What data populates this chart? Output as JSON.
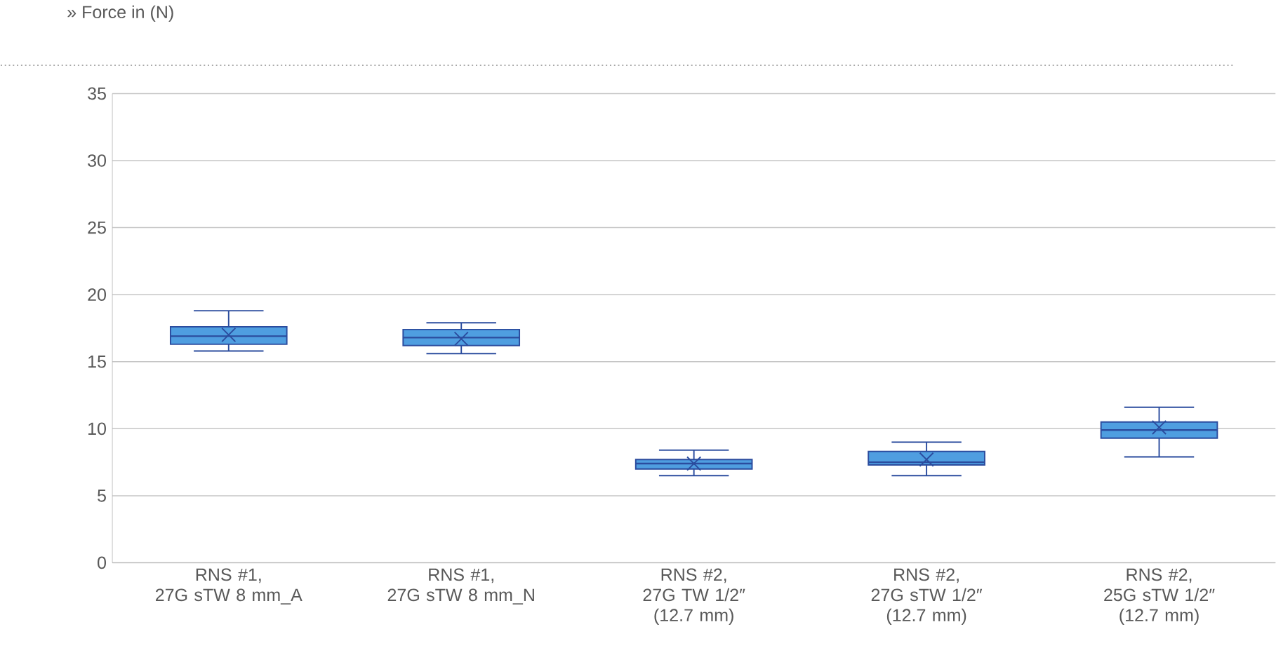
{
  "chart_data": {
    "type": "box",
    "ylabel": "» Force in (N)",
    "categories": [
      "RNS #1,\n27G sTW 8 mm_A",
      "RNS #1,\n27G sTW 8 mm_N",
      "RNS #2,\n27G TW 1/2″\n(12.7 mm)",
      "RNS #2,\n27G sTW 1/2″\n(12.7 mm)",
      "RNS #2,\n25G sTW 1/2″\n(12.7 mm)"
    ],
    "color": "#4f9ee0",
    "boxes": [
      {
        "low": 15.8,
        "q1": 16.3,
        "median": 16.9,
        "q3": 17.6,
        "high": 18.8,
        "mean": 17.0
      },
      {
        "low": 15.6,
        "q1": 16.2,
        "median": 16.8,
        "q3": 17.4,
        "high": 17.9,
        "mean": 16.7
      },
      {
        "low": 6.5,
        "q1": 7.0,
        "median": 7.4,
        "q3": 7.7,
        "high": 8.4,
        "mean": 7.4
      },
      {
        "low": 6.5,
        "q1": 7.3,
        "median": 7.5,
        "q3": 8.3,
        "high": 9.0,
        "mean": 7.7
      },
      {
        "low": 7.9,
        "q1": 9.3,
        "median": 9.9,
        "q3": 10.5,
        "high": 11.6,
        "mean": 10.1
      }
    ],
    "ylim": [
      0,
      35
    ],
    "yticks": [
      0,
      5,
      10,
      15,
      20,
      25,
      30,
      35
    ],
    "grid": "y",
    "marker": "cross"
  }
}
